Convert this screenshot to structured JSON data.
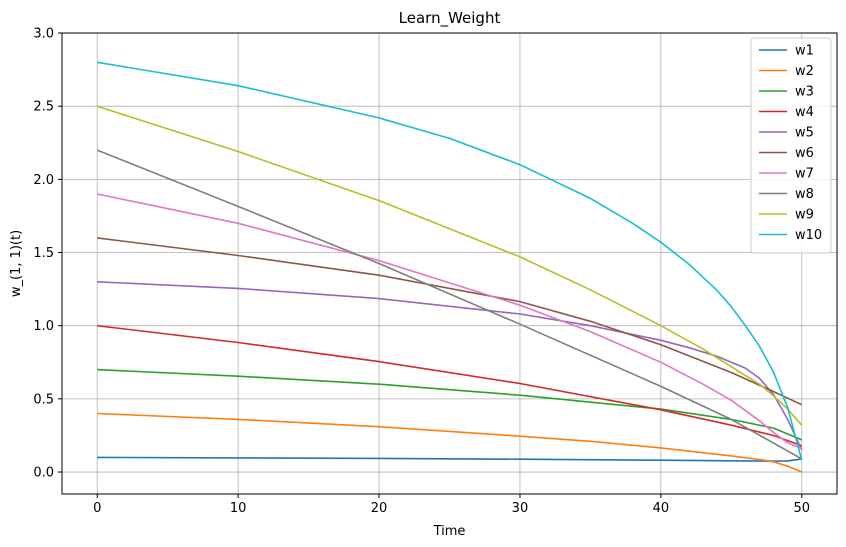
{
  "chart_data": {
    "type": "line",
    "title": "Learn_Weight",
    "xlabel": "Time",
    "ylabel": "w_(1, 1)(t)",
    "xlim": [
      -2.5,
      52.5
    ],
    "ylim": [
      -0.15,
      3.0
    ],
    "xticks": [
      0,
      10,
      20,
      30,
      40,
      50
    ],
    "yticks": [
      0.0,
      0.5,
      1.0,
      1.5,
      2.0,
      2.5,
      3.0
    ],
    "xtick_labels": [
      "0",
      "10",
      "20",
      "30",
      "40",
      "50"
    ],
    "ytick_labels": [
      "0.0",
      "0.5",
      "1.0",
      "1.5",
      "2.0",
      "2.5",
      "3.0"
    ],
    "grid": true,
    "legend_position": "top-right",
    "series": [
      {
        "name": "w1",
        "color": "#1f77b4",
        "x": [
          0,
          10,
          20,
          30,
          40,
          45,
          48,
          49,
          50
        ],
        "values": [
          0.1,
          0.097,
          0.093,
          0.088,
          0.081,
          0.077,
          0.075,
          0.076,
          0.09
        ]
      },
      {
        "name": "w2",
        "color": "#ff7f0e",
        "x": [
          0,
          10,
          20,
          30,
          35,
          40,
          45,
          47,
          48,
          49,
          50
        ],
        "values": [
          0.4,
          0.36,
          0.31,
          0.245,
          0.21,
          0.165,
          0.11,
          0.085,
          0.07,
          0.04,
          0.0
        ]
      },
      {
        "name": "w3",
        "color": "#2ca02c",
        "x": [
          0,
          10,
          20,
          30,
          40,
          45,
          48,
          50
        ],
        "values": [
          0.7,
          0.655,
          0.6,
          0.525,
          0.43,
          0.36,
          0.3,
          0.22
        ]
      },
      {
        "name": "w4",
        "color": "#d62728",
        "x": [
          0,
          10,
          20,
          30,
          40,
          45,
          48,
          50
        ],
        "values": [
          1.0,
          0.885,
          0.755,
          0.605,
          0.425,
          0.32,
          0.25,
          0.18
        ]
      },
      {
        "name": "w5",
        "color": "#9467bd",
        "x": [
          0,
          10,
          20,
          30,
          35,
          40,
          42,
          44,
          46,
          47,
          48,
          49,
          50
        ],
        "values": [
          1.3,
          1.255,
          1.185,
          1.08,
          1.0,
          0.9,
          0.85,
          0.79,
          0.71,
          0.64,
          0.53,
          0.36,
          0.15
        ]
      },
      {
        "name": "w6",
        "color": "#8c564b",
        "x": [
          0,
          10,
          20,
          30,
          35,
          40,
          45,
          48,
          50
        ],
        "values": [
          1.6,
          1.48,
          1.345,
          1.165,
          1.03,
          0.87,
          0.68,
          0.55,
          0.46
        ]
      },
      {
        "name": "w7",
        "color": "#e377c2",
        "x": [
          0,
          10,
          20,
          30,
          35,
          40,
          43,
          45,
          47,
          48,
          49,
          50
        ],
        "values": [
          1.9,
          1.7,
          1.445,
          1.14,
          0.96,
          0.75,
          0.6,
          0.49,
          0.35,
          0.27,
          0.2,
          0.16
        ]
      },
      {
        "name": "w8",
        "color": "#7f7f7f",
        "x": [
          0,
          10,
          20,
          30,
          40,
          45,
          50
        ],
        "values": [
          2.2,
          1.815,
          1.425,
          1.01,
          0.585,
          0.36,
          0.09
        ]
      },
      {
        "name": "w9",
        "color": "#bcbd22",
        "x": [
          0,
          10,
          20,
          30,
          35,
          40,
          43,
          45,
          47,
          48,
          49,
          50
        ],
        "values": [
          2.5,
          2.19,
          1.855,
          1.47,
          1.245,
          1.0,
          0.84,
          0.72,
          0.6,
          0.52,
          0.43,
          0.32
        ]
      },
      {
        "name": "w10",
        "color": "#17becf",
        "x": [
          0,
          10,
          20,
          25,
          30,
          35,
          38,
          40,
          42,
          44,
          45,
          46,
          47,
          48,
          49,
          50
        ],
        "values": [
          2.8,
          2.64,
          2.42,
          2.28,
          2.1,
          1.87,
          1.7,
          1.57,
          1.42,
          1.24,
          1.13,
          1.0,
          0.86,
          0.68,
          0.44,
          0.08
        ]
      }
    ]
  }
}
